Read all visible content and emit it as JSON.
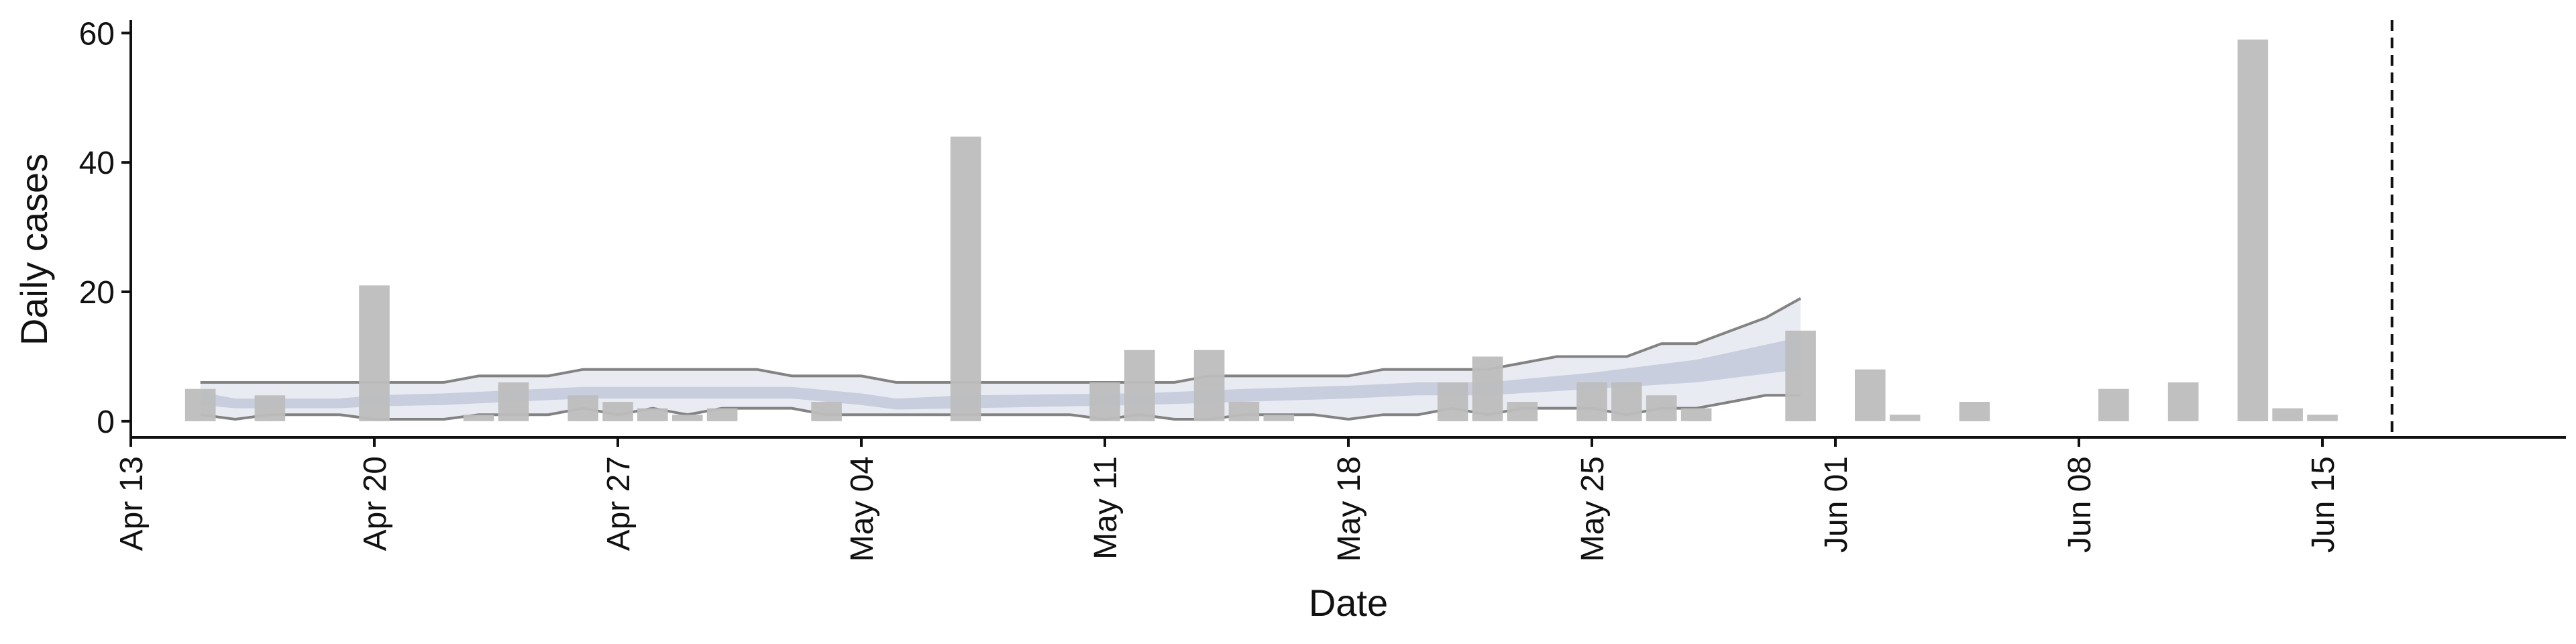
{
  "chart_data": {
    "type": "bar",
    "title": "",
    "xlabel": "Date",
    "ylabel": "Daily cases",
    "ylim": [
      -2.5,
      62
    ],
    "y_ticks": [
      0,
      20,
      40,
      60
    ],
    "y_tick_labels": [
      "0",
      "20",
      "40",
      "60"
    ],
    "x_range": [
      "2020-04-13",
      "2020-06-22"
    ],
    "x_ticks": [
      "2020-04-13",
      "2020-04-20",
      "2020-04-27",
      "2020-05-04",
      "2020-05-11",
      "2020-05-18",
      "2020-05-25",
      "2020-06-01",
      "2020-06-08",
      "2020-06-15"
    ],
    "x_tick_labels": [
      "Apr 13",
      "Apr 20",
      "Apr 27",
      "May 04",
      "May 11",
      "May 18",
      "May 25",
      "Jun 01",
      "Jun 08",
      "Jun 15"
    ],
    "grid": false,
    "cutoff_line_date": "2020-06-17",
    "colors": {
      "bars": "#bdbdbd",
      "band_inner": "#c5cbdc",
      "band_outer": "#e3e6ef",
      "band_lines": "#6e6e6e",
      "cutoff_line": "#111111"
    },
    "bars": [
      {
        "date": "2020-04-15",
        "value": 5
      },
      {
        "date": "2020-04-17",
        "value": 4
      },
      {
        "date": "2020-04-20",
        "value": 21
      },
      {
        "date": "2020-04-23",
        "value": 1
      },
      {
        "date": "2020-04-24",
        "value": 6
      },
      {
        "date": "2020-04-26",
        "value": 4
      },
      {
        "date": "2020-04-27",
        "value": 3
      },
      {
        "date": "2020-04-28",
        "value": 2
      },
      {
        "date": "2020-04-29",
        "value": 1
      },
      {
        "date": "2020-04-30",
        "value": 2
      },
      {
        "date": "2020-05-03",
        "value": 3
      },
      {
        "date": "2020-05-07",
        "value": 44
      },
      {
        "date": "2020-05-11",
        "value": 6
      },
      {
        "date": "2020-05-12",
        "value": 11
      },
      {
        "date": "2020-05-14",
        "value": 11
      },
      {
        "date": "2020-05-15",
        "value": 3
      },
      {
        "date": "2020-05-16",
        "value": 1
      },
      {
        "date": "2020-05-21",
        "value": 6
      },
      {
        "date": "2020-05-22",
        "value": 10
      },
      {
        "date": "2020-05-23",
        "value": 3
      },
      {
        "date": "2020-05-25",
        "value": 6
      },
      {
        "date": "2020-05-26",
        "value": 6
      },
      {
        "date": "2020-05-27",
        "value": 4
      },
      {
        "date": "2020-05-28",
        "value": 2
      },
      {
        "date": "2020-05-31",
        "value": 14
      },
      {
        "date": "2020-06-02",
        "value": 8
      },
      {
        "date": "2020-06-03",
        "value": 1
      },
      {
        "date": "2020-06-05",
        "value": 3
      },
      {
        "date": "2020-06-09",
        "value": 5
      },
      {
        "date": "2020-06-11",
        "value": 6
      },
      {
        "date": "2020-06-13",
        "value": 59
      },
      {
        "date": "2020-06-14",
        "value": 2
      },
      {
        "date": "2020-06-15",
        "value": 1
      }
    ],
    "outer_band": {
      "lower": [
        [
          "2020-04-15",
          1
        ],
        [
          "2020-04-16",
          0.3
        ],
        [
          "2020-04-17",
          1
        ],
        [
          "2020-04-19",
          1
        ],
        [
          "2020-04-20",
          0.3
        ],
        [
          "2020-04-22",
          0.3
        ],
        [
          "2020-04-23",
          1
        ],
        [
          "2020-04-25",
          1
        ],
        [
          "2020-04-26",
          2
        ],
        [
          "2020-04-27",
          1
        ],
        [
          "2020-04-28",
          2
        ],
        [
          "2020-04-29",
          1
        ],
        [
          "2020-04-30",
          2
        ],
        [
          "2020-05-02",
          2
        ],
        [
          "2020-05-03",
          1
        ],
        [
          "2020-05-10",
          1
        ],
        [
          "2020-05-11",
          0.3
        ],
        [
          "2020-05-12",
          1
        ],
        [
          "2020-05-13",
          0.3
        ],
        [
          "2020-05-14",
          0.3
        ],
        [
          "2020-05-15",
          1
        ],
        [
          "2020-05-17",
          1
        ],
        [
          "2020-05-18",
          0.3
        ],
        [
          "2020-05-19",
          1
        ],
        [
          "2020-05-20",
          1
        ],
        [
          "2020-05-21",
          2
        ],
        [
          "2020-05-22",
          1
        ],
        [
          "2020-05-23",
          2
        ],
        [
          "2020-05-24",
          2
        ],
        [
          "2020-05-25",
          2
        ],
        [
          "2020-05-26",
          1
        ],
        [
          "2020-05-27",
          2
        ],
        [
          "2020-05-28",
          2
        ],
        [
          "2020-05-29",
          3
        ],
        [
          "2020-05-30",
          4
        ],
        [
          "2020-05-31",
          4
        ]
      ],
      "upper": [
        [
          "2020-04-15",
          6
        ],
        [
          "2020-04-22",
          6
        ],
        [
          "2020-04-23",
          7
        ],
        [
          "2020-04-25",
          7
        ],
        [
          "2020-04-26",
          8
        ],
        [
          "2020-05-01",
          8
        ],
        [
          "2020-05-02",
          7
        ],
        [
          "2020-05-04",
          7
        ],
        [
          "2020-05-05",
          6
        ],
        [
          "2020-05-13",
          6
        ],
        [
          "2020-05-14",
          7
        ],
        [
          "2020-05-18",
          7
        ],
        [
          "2020-05-19",
          8
        ],
        [
          "2020-05-22",
          8
        ],
        [
          "2020-05-23",
          9
        ],
        [
          "2020-05-24",
          10
        ],
        [
          "2020-05-26",
          10
        ],
        [
          "2020-05-27",
          12
        ],
        [
          "2020-05-28",
          12
        ],
        [
          "2020-05-29",
          14
        ],
        [
          "2020-05-30",
          16
        ],
        [
          "2020-05-31",
          19
        ]
      ]
    },
    "inner_band": {
      "lower": [
        [
          "2020-04-15",
          2.5
        ],
        [
          "2020-04-16",
          2
        ],
        [
          "2020-04-19",
          2
        ],
        [
          "2020-04-20",
          2.3
        ],
        [
          "2020-04-22",
          2.5
        ],
        [
          "2020-04-26",
          3.5
        ],
        [
          "2020-05-02",
          3.5
        ],
        [
          "2020-05-04",
          2.5
        ],
        [
          "2020-05-05",
          1.8
        ],
        [
          "2020-05-07",
          2
        ],
        [
          "2020-05-12",
          2.5
        ],
        [
          "2020-05-15",
          3
        ],
        [
          "2020-05-18",
          3.5
        ],
        [
          "2020-05-20",
          4
        ],
        [
          "2020-05-22",
          4
        ],
        [
          "2020-05-25",
          5
        ],
        [
          "2020-05-28",
          6
        ],
        [
          "2020-05-31",
          8
        ]
      ],
      "upper": [
        [
          "2020-04-15",
          4.5
        ],
        [
          "2020-04-16",
          3.5
        ],
        [
          "2020-04-19",
          3.5
        ],
        [
          "2020-04-20",
          4
        ],
        [
          "2020-04-22",
          4.3
        ],
        [
          "2020-04-26",
          5.3
        ],
        [
          "2020-05-02",
          5.3
        ],
        [
          "2020-05-04",
          4.3
        ],
        [
          "2020-05-05",
          3.5
        ],
        [
          "2020-05-07",
          4
        ],
        [
          "2020-05-12",
          4.3
        ],
        [
          "2020-05-15",
          5
        ],
        [
          "2020-05-18",
          5.5
        ],
        [
          "2020-05-20",
          6
        ],
        [
          "2020-05-22",
          6
        ],
        [
          "2020-05-25",
          7.5
        ],
        [
          "2020-05-28",
          9.5
        ],
        [
          "2020-05-31",
          13
        ]
      ]
    }
  }
}
